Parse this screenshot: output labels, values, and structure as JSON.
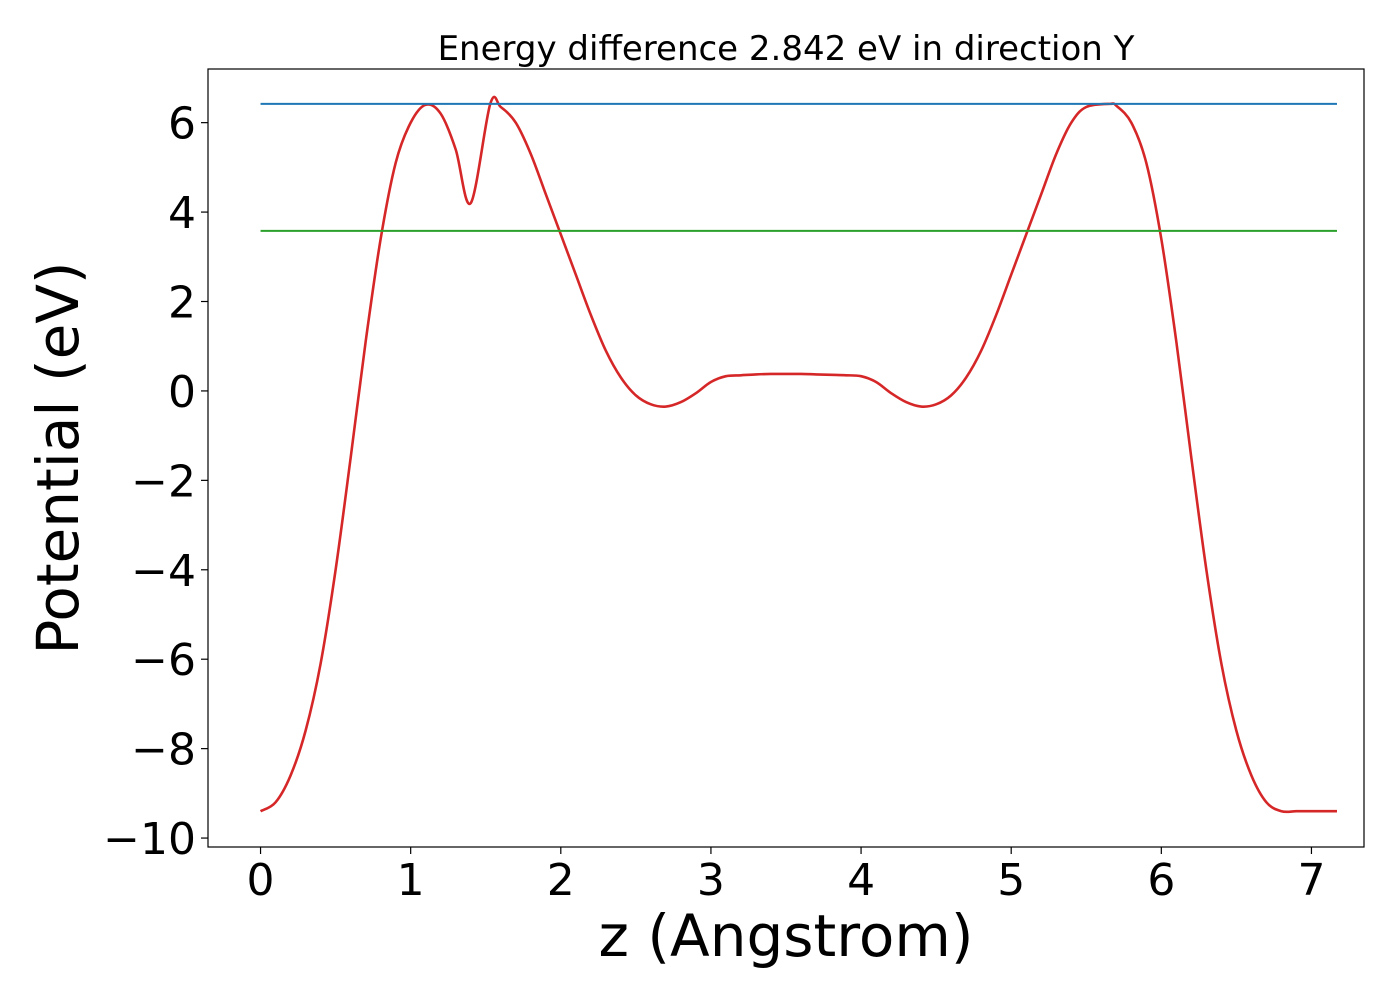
{
  "chart_data": {
    "type": "line",
    "title": "Energy difference 2.842 eV in direction Y",
    "xlabel": "z (Angstrom)",
    "ylabel": "Potential (eV)",
    "xlim": [
      -0.35,
      7.35
    ],
    "ylim": [
      -10.2,
      7.2
    ],
    "xticks": [
      0,
      1,
      2,
      3,
      4,
      5,
      6,
      7
    ],
    "xtick_labels": [
      "0",
      "1",
      "2",
      "3",
      "4",
      "5",
      "6",
      "7"
    ],
    "yticks": [
      -10,
      -8,
      -6,
      -4,
      -2,
      0,
      2,
      4,
      6
    ],
    "ytick_labels": [
      "−10",
      "−8",
      "−6",
      "−4",
      "−2",
      "0",
      "2",
      "4",
      "6"
    ],
    "grid": false,
    "series": [
      {
        "color": "#d62728",
        "x": [
          0.0,
          0.1,
          0.2,
          0.3,
          0.4,
          0.5,
          0.6,
          0.7,
          0.8,
          0.9,
          1.0,
          1.1,
          1.2,
          1.3,
          1.4,
          1.53,
          1.6,
          1.7,
          1.8,
          1.9,
          2.0,
          2.1,
          2.2,
          2.3,
          2.4,
          2.5,
          2.6,
          2.7,
          2.8,
          2.9,
          3.0,
          3.1,
          3.2,
          3.3,
          3.4,
          3.5,
          3.6,
          3.7,
          3.8,
          3.9,
          4.0,
          4.1,
          4.2,
          4.3,
          4.4,
          4.5,
          4.6,
          4.7,
          4.8,
          4.9,
          5.0,
          5.1,
          5.2,
          5.3,
          5.4,
          5.5,
          5.66,
          5.7,
          5.8,
          5.9,
          6.0,
          6.1,
          6.2,
          6.3,
          6.4,
          6.5,
          6.6,
          6.7,
          6.8,
          6.9,
          7.0,
          7.1,
          7.17
        ],
        "y": [
          -9.4,
          -9.2,
          -8.6,
          -7.6,
          -6.1,
          -4.0,
          -1.5,
          1.1,
          3.4,
          5.1,
          6.0,
          6.4,
          6.2,
          5.4,
          4.2,
          6.42,
          6.35,
          6.0,
          5.3,
          4.4,
          3.5,
          2.6,
          1.7,
          0.9,
          0.3,
          -0.1,
          -0.3,
          -0.35,
          -0.25,
          -0.05,
          0.2,
          0.33,
          0.35,
          0.37,
          0.38,
          0.38,
          0.38,
          0.37,
          0.36,
          0.35,
          0.33,
          0.2,
          -0.05,
          -0.25,
          -0.35,
          -0.3,
          -0.1,
          0.3,
          0.9,
          1.7,
          2.6,
          3.5,
          4.4,
          5.3,
          6.0,
          6.35,
          6.42,
          6.38,
          6.0,
          5.1,
          3.4,
          1.1,
          -1.5,
          -4.0,
          -6.1,
          -7.6,
          -8.6,
          -9.2,
          -9.4,
          -9.4,
          -9.4,
          -9.4,
          -9.4
        ]
      },
      {
        "color": "#1f77b4",
        "x": [
          0.0,
          7.17
        ],
        "y": [
          6.42,
          6.42
        ]
      },
      {
        "color": "#2ca02c",
        "x": [
          0.0,
          7.17
        ],
        "y": [
          3.58,
          3.58
        ]
      }
    ]
  }
}
